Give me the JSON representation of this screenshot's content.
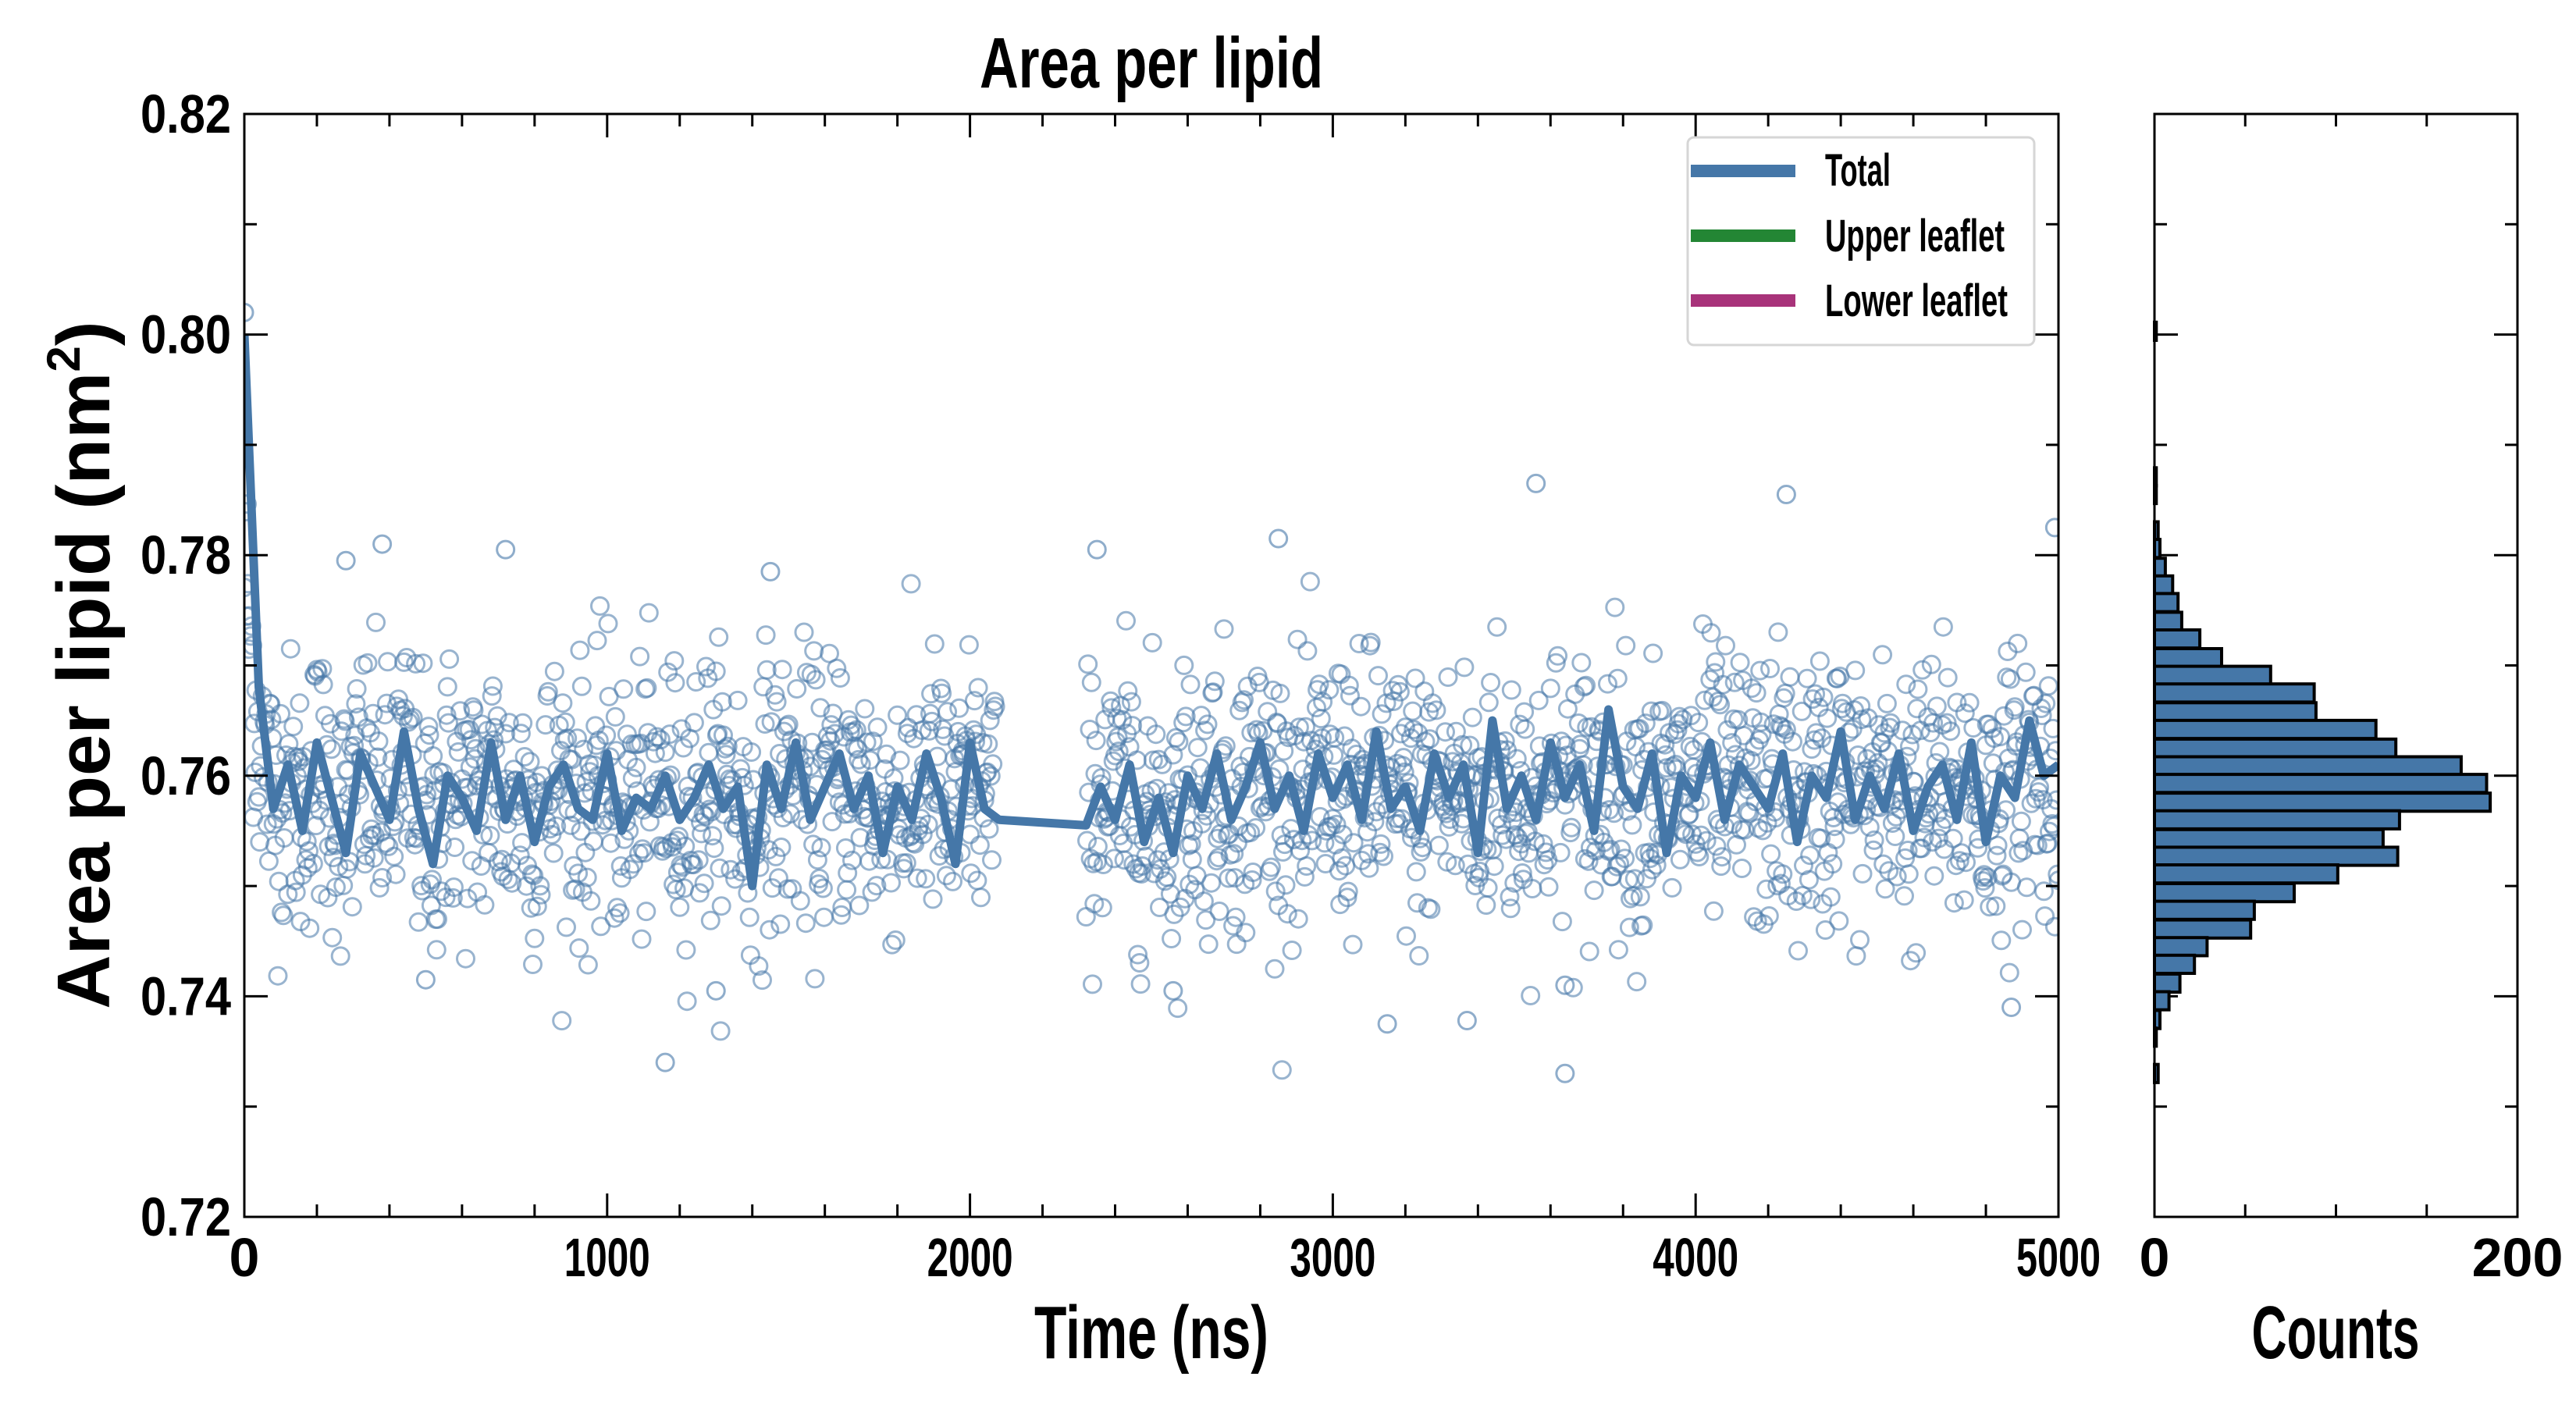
{
  "chart_data": [
    {
      "type": "scatter",
      "title": "Area per lipid",
      "xlabel": "Time (ns)",
      "ylabel": "Area per lipid (nm",
      "ylabel_sup": "2",
      "ylabel_close": ")",
      "xlim": [
        0,
        5000
      ],
      "ylim": [
        0.72,
        0.82
      ],
      "xticks": [
        0,
        1000,
        2000,
        3000,
        4000,
        5000
      ],
      "xtick_labels": [
        "0",
        "1000",
        "2000",
        "3000",
        "4000",
        "5000"
      ],
      "yticks": [
        0.72,
        0.74,
        0.76,
        0.78,
        0.8,
        0.82
      ],
      "ytick_labels": [
        "0.72",
        "0.74",
        "0.76",
        "0.78",
        "0.80",
        "0.82"
      ],
      "grid": false,
      "legend": {
        "placement": "top-right",
        "entries": [
          {
            "label": "Total",
            "color": "#4577a8"
          },
          {
            "label": "Upper leaflet",
            "color": "#238634"
          },
          {
            "label": "Lower leaflet",
            "color": "#a8337a"
          }
        ]
      },
      "series": [
        {
          "name": "Total (running average)",
          "kind": "line",
          "color": "#4577a8",
          "segments": [
            {
              "t0": 0,
              "dt": 40,
              "values": [
                0.8,
                0.768,
                0.757,
                0.761,
                0.755,
                0.763,
                0.758,
                0.753,
                0.762,
                0.759,
                0.756,
                0.764,
                0.757,
                0.752,
                0.76,
                0.758,
                0.755,
                0.763,
                0.756,
                0.76,
                0.754,
                0.759,
                0.761,
                0.757,
                0.756,
                0.762,
                0.755,
                0.758,
                0.757,
                0.76,
                0.756,
                0.758,
                0.761,
                0.757,
                0.759,
                0.75,
                0.761,
                0.757,
                0.763,
                0.756,
                0.759,
                0.762,
                0.757,
                0.76,
                0.753,
                0.759,
                0.756,
                0.762,
                0.758,
                0.752,
                0.763,
                0.757,
                0.756
              ]
            },
            {
              "t0": 2080,
              "dt": 240,
              "values": [
                0.756,
                0.7555
              ]
            },
            {
              "t0": 2320,
              "dt": 40,
              "values": [
                0.7555,
                0.759,
                0.756,
                0.761,
                0.754,
                0.758,
                0.753,
                0.76,
                0.757,
                0.762,
                0.756,
                0.759,
                0.763,
                0.757,
                0.76,
                0.755,
                0.762,
                0.758,
                0.761,
                0.756,
                0.764,
                0.757,
                0.759,
                0.755,
                0.762,
                0.758,
                0.761,
                0.753,
                0.765,
                0.757,
                0.76,
                0.756,
                0.763,
                0.758,
                0.761,
                0.755,
                0.766,
                0.759,
                0.757,
                0.762,
                0.753,
                0.76,
                0.758,
                0.763,
                0.756,
                0.761,
                0.759,
                0.757,
                0.762,
                0.754,
                0.76,
                0.758,
                0.764,
                0.756,
                0.76,
                0.757,
                0.762,
                0.755,
                0.759,
                0.761,
                0.756,
                0.763,
                0.754,
                0.76,
                0.758,
                0.765,
                0.76,
                0.761
              ]
            }
          ]
        },
        {
          "name": "Total (instantaneous)",
          "kind": "scatter",
          "color": "#4577a8",
          "time_ranges": [
            [
              0,
              2070
            ],
            [
              2320,
              5000
            ]
          ],
          "sampling_ns": 2.5,
          "mean": 0.758,
          "std": 0.0062,
          "outliers": [
            [
              0,
              0.802
            ],
            [
              280,
              0.7795
            ],
            [
              380,
              0.781
            ],
            [
              720,
              0.7805
            ],
            [
              1160,
              0.734
            ],
            [
              1450,
              0.7785
            ],
            [
              2350,
              0.7805
            ],
            [
              2850,
              0.7815
            ],
            [
              3560,
              0.7865
            ],
            [
              3640,
              0.733
            ],
            [
              4250,
              0.7855
            ],
            [
              4870,
              0.739
            ],
            [
              4990,
              0.7825
            ],
            [
              3370,
              0.7378
            ],
            [
              3150,
              0.7375
            ],
            [
              500,
              0.7415
            ],
            [
              1300,
              0.7405
            ],
            [
              3640,
              0.741
            ],
            [
              2560,
              0.7405
            ]
          ]
        }
      ]
    },
    {
      "type": "bar",
      "orientation": "horizontal",
      "xlabel": "Counts",
      "xlim": [
        0,
        200
      ],
      "xticks": [
        0,
        200
      ],
      "xtick_labels": [
        "0",
        "200"
      ],
      "ylim": [
        0.72,
        0.82
      ],
      "bar_color": "#4577a8",
      "bin_width": 0.00164,
      "bin_centers": [
        0.8003,
        0.7871,
        0.7855,
        0.7822,
        0.7806,
        0.7789,
        0.7773,
        0.7757,
        0.774,
        0.7724,
        0.7707,
        0.7691,
        0.7675,
        0.7658,
        0.7642,
        0.7625,
        0.7609,
        0.7593,
        0.7576,
        0.756,
        0.7543,
        0.7527,
        0.7511,
        0.7494,
        0.7478,
        0.7461,
        0.7445,
        0.7429,
        0.7412,
        0.7396,
        0.7379,
        0.7363,
        0.733
      ],
      "counts": [
        1,
        1,
        1,
        2,
        3,
        6,
        10,
        13,
        15,
        25,
        37,
        64,
        88,
        89,
        122,
        133,
        169,
        183,
        185,
        135,
        126,
        134,
        101,
        77,
        55,
        53,
        29,
        22,
        14,
        8,
        3,
        1,
        2
      ]
    }
  ]
}
